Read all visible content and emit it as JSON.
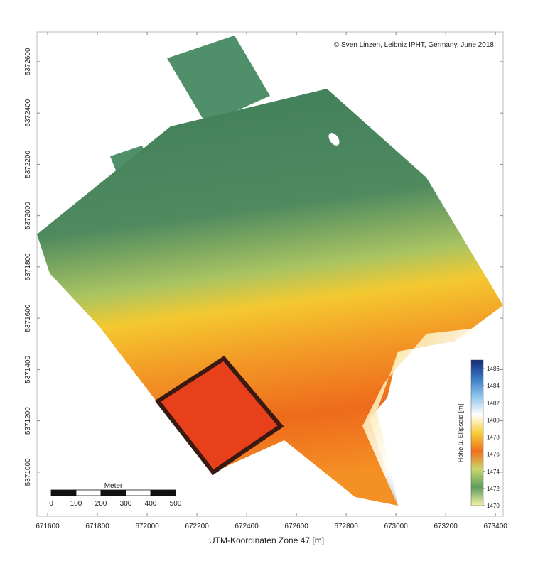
{
  "map": {
    "credit": "© Sven Linzen, Leibniz IPHT, Germany, June 2018",
    "x_axis": {
      "label": "UTM-Koordinaten Zone 47 [m]",
      "lim": [
        671557,
        673431
      ],
      "ticks": [
        671600,
        671800,
        672000,
        672200,
        672400,
        672600,
        672800,
        673000,
        673200,
        673400
      ]
    },
    "y_axis": {
      "lim": [
        5370828,
        5372716
      ],
      "ticks": [
        5371000,
        5371200,
        5371400,
        5371600,
        5371800,
        5372000,
        5372200,
        5372400,
        5372600
      ]
    },
    "colorbar": {
      "label": "Höhe ü. Ellipsoid [m]",
      "lim": [
        1470,
        1487
      ],
      "ticks": [
        1470,
        1472,
        1474,
        1476,
        1478,
        1480,
        1482,
        1484,
        1486
      ],
      "colors": [
        "#f6f2a6",
        "#5c9e5e",
        "#c9d66a",
        "#f0701c",
        "#f7cf3a",
        "#ffffff",
        "#8ec6ea",
        "#3a78c4",
        "#142a78"
      ]
    },
    "scale_bar": {
      "label": "Meter",
      "ticks": [
        0,
        100,
        200,
        300,
        400,
        500
      ]
    }
  }
}
